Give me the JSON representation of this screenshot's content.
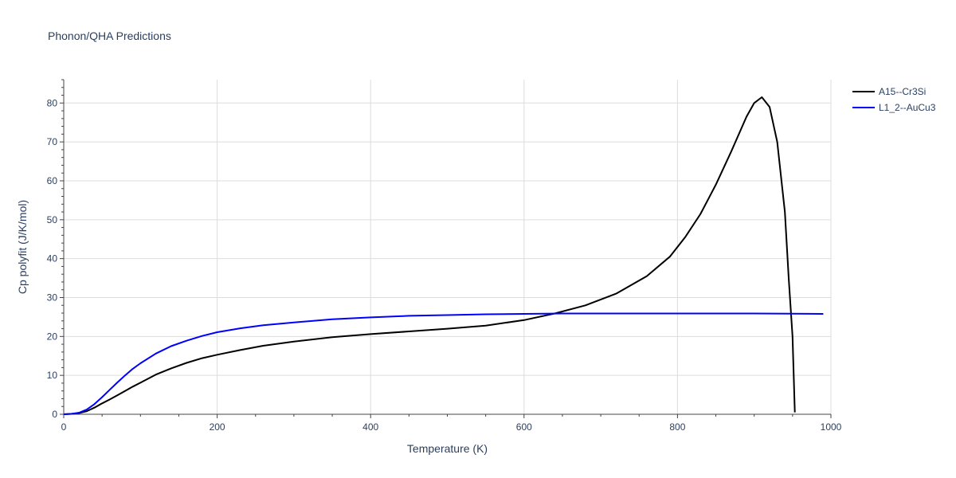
{
  "chart_data": {
    "type": "line",
    "title": "Phonon/QHA Predictions",
    "xlabel": "Temperature (K)",
    "ylabel": "Cp polyfit (J/K/mol)",
    "xlim": [
      0,
      1000
    ],
    "ylim": [
      0,
      86
    ],
    "x_ticks": [
      0,
      200,
      400,
      600,
      800,
      1000
    ],
    "y_ticks": [
      0,
      10,
      20,
      30,
      40,
      50,
      60,
      70,
      80
    ],
    "grid": true,
    "legend_position": "top-right",
    "series": [
      {
        "name": "A15--Cr3Si",
        "color": "#000000",
        "x": [
          0,
          10,
          20,
          30,
          40,
          50,
          60,
          70,
          80,
          90,
          100,
          120,
          140,
          160,
          180,
          200,
          230,
          260,
          300,
          350,
          400,
          450,
          500,
          550,
          600,
          640,
          680,
          720,
          760,
          790,
          810,
          830,
          850,
          870,
          890,
          900,
          910,
          920,
          930,
          940,
          945,
          950,
          953
        ],
        "y": [
          0,
          0.1,
          0.3,
          0.8,
          1.7,
          2.8,
          3.8,
          4.9,
          6.0,
          7.1,
          8.1,
          10.2,
          11.8,
          13.2,
          14.4,
          15.3,
          16.5,
          17.6,
          18.7,
          19.8,
          20.6,
          21.3,
          22.0,
          22.8,
          24.2,
          25.9,
          28.0,
          31.0,
          35.5,
          40.5,
          45.5,
          51.5,
          59.0,
          67.5,
          76.5,
          80.0,
          81.5,
          79.0,
          70.0,
          52.0,
          35.0,
          20.0,
          0.5
        ]
      },
      {
        "name": "L1_2--AuCu3",
        "color": "#0000ff",
        "x": [
          0,
          10,
          20,
          30,
          40,
          50,
          60,
          70,
          80,
          90,
          100,
          120,
          140,
          160,
          180,
          200,
          230,
          260,
          300,
          350,
          400,
          450,
          500,
          550,
          600,
          650,
          700,
          800,
          900,
          990
        ],
        "y": [
          0,
          0.1,
          0.4,
          1.2,
          2.6,
          4.4,
          6.3,
          8.2,
          10.0,
          11.7,
          13.1,
          15.6,
          17.5,
          18.9,
          20.1,
          21.1,
          22.1,
          22.9,
          23.6,
          24.4,
          24.9,
          25.3,
          25.5,
          25.7,
          25.8,
          25.9,
          25.9,
          25.9,
          25.9,
          25.8
        ]
      }
    ]
  }
}
